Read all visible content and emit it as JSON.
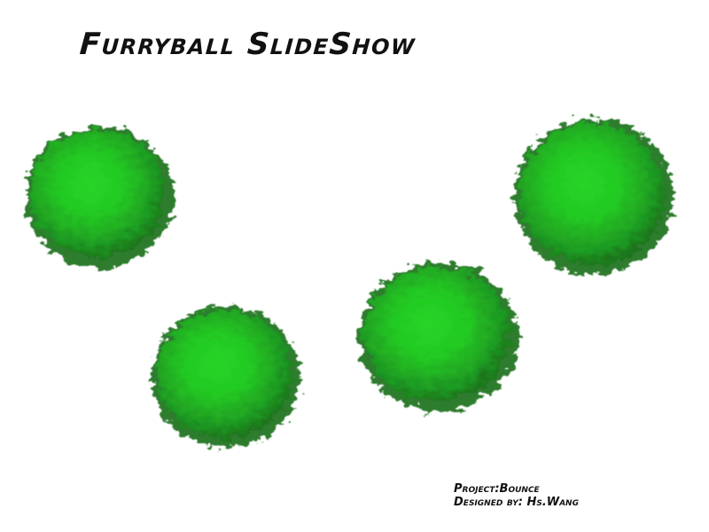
{
  "slideshow": {
    "title": "Furryball SlideShow",
    "ball_color": "#22cc22",
    "ball_dark": "#1a6e1a",
    "balls": [
      {
        "name": "furry-ball-1"
      },
      {
        "name": "furry-ball-2"
      },
      {
        "name": "furry-ball-3"
      },
      {
        "name": "furry-ball-4"
      }
    ]
  },
  "credits": {
    "project": "Project:Bounce",
    "designer": "Designed by: Hs.Wang"
  }
}
